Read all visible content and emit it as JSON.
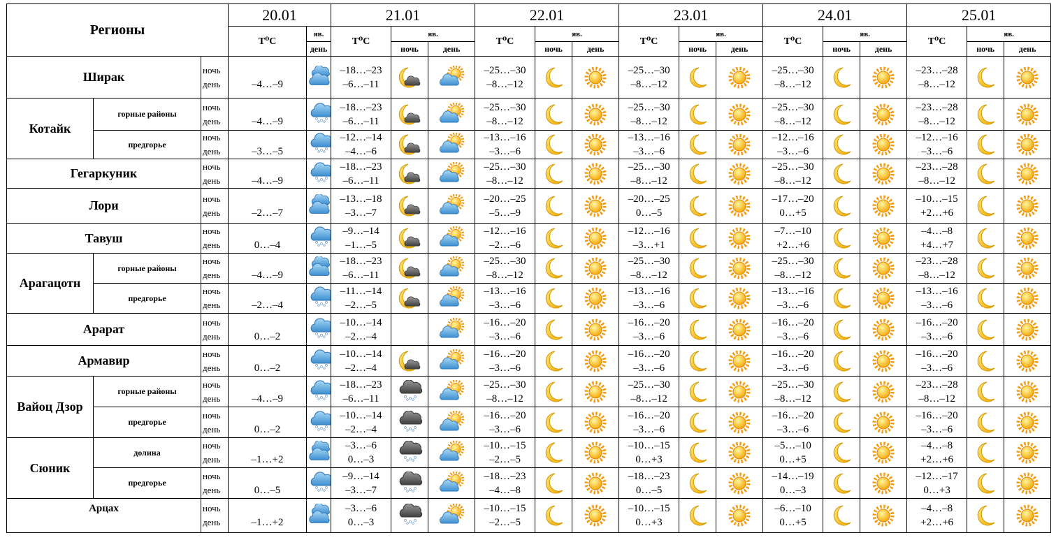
{
  "header": {
    "title": "Регионы",
    "dates": [
      "20.01",
      "21.01",
      "22.01",
      "23.01",
      "24.01",
      "25.01"
    ],
    "temp": "T⁰C",
    "phenomena": "яв.",
    "night": "ночь",
    "day": "день"
  },
  "regions": [
    {
      "name": "Ширак",
      "rows": [
        {
          "t0": "–4…–9",
          "t": [
            [
              "–18…–23",
              "–6…–11"
            ],
            [
              "–25…–30",
              "–8…–12"
            ],
            [
              "–25…–30",
              "–8…–12"
            ],
            [
              "–25…–30",
              "–8…–12"
            ],
            [
              "–23…–28",
              "–8…–12"
            ]
          ]
        }
      ]
    },
    {
      "name": "Котайк",
      "rows": [
        {
          "sub": "горные районы",
          "t0": "–4…–9",
          "t": [
            [
              "–18…–23",
              "–6…–11"
            ],
            [
              "–25…–30",
              "–8…–12"
            ],
            [
              "–25…–30",
              "–8…–12"
            ],
            [
              "–25…–30",
              "–8…–12"
            ],
            [
              "–23…–28",
              "–8…–12"
            ]
          ]
        },
        {
          "sub": "предгорье",
          "t0": "–3…–5",
          "t": [
            [
              "–12…–14",
              "–4…–6"
            ],
            [
              "–13…–16",
              "–3…–6"
            ],
            [
              "–13…–16",
              "–3…–6"
            ],
            [
              "–12…–16",
              "–3…–6"
            ],
            [
              "–12…–16",
              "–3…–6"
            ]
          ]
        }
      ]
    },
    {
      "name": "Гегаркуник",
      "rows": [
        {
          "t0": "–4…–9",
          "t": [
            [
              "–18…–23",
              "–6…–11"
            ],
            [
              "–25…–30",
              "–8…–12"
            ],
            [
              "–25…–30",
              "–8…–12"
            ],
            [
              "–25…–30",
              "–8…–12"
            ],
            [
              "–23…–28",
              "–8…–12"
            ]
          ]
        }
      ]
    },
    {
      "name": "Лори",
      "rows": [
        {
          "t0": "–2…–7",
          "t": [
            [
              "–13…–18",
              "–3…–7"
            ],
            [
              "–20…–25",
              "–5…–9"
            ],
            [
              "–20…–25",
              "0…–5"
            ],
            [
              "–17…–20",
              "0…+5"
            ],
            [
              "–10…–15",
              "+2…+6"
            ]
          ]
        }
      ]
    },
    {
      "name": "Тавуш",
      "rows": [
        {
          "t0": "0…–4",
          "t": [
            [
              "–9…–14",
              "–1…–5"
            ],
            [
              "–12…–16",
              "–2…–6"
            ],
            [
              "–12…–16",
              "–3…+1"
            ],
            [
              "–7…–10",
              "+2…+6"
            ],
            [
              "–4…–8",
              "+4…+7"
            ]
          ]
        }
      ]
    },
    {
      "name": "Арагацотн",
      "rows": [
        {
          "sub": "горные районы",
          "t0": "–4…–9",
          "t": [
            [
              "–18…–23",
              "–6…–11"
            ],
            [
              "–25…–30",
              "–8…–12"
            ],
            [
              "–25…–30",
              "–8…–12"
            ],
            [
              "–25…–30",
              "–8…–12"
            ],
            [
              "–23…–28",
              "–8…–12"
            ]
          ]
        },
        {
          "sub": "предгорье",
          "t0": "–2…–4",
          "t": [
            [
              "–11…–14",
              "–2…–5"
            ],
            [
              "–13…–16",
              "–3…–6"
            ],
            [
              "–13…–16",
              "–3…–6"
            ],
            [
              "–13…–16",
              "–3…–6"
            ],
            [
              "–13…–16",
              "–3…–6"
            ]
          ]
        }
      ]
    },
    {
      "name": "Арарат",
      "rows": [
        {
          "t0": "0…–2",
          "t": [
            [
              "–10…–14",
              "–2…–4"
            ],
            [
              "–16…–20",
              "–3…–6"
            ],
            [
              "–16…–20",
              "–3…–6"
            ],
            [
              "–16…–20",
              "–3…–6"
            ],
            [
              "–16…–20",
              "–3…–6"
            ]
          ]
        }
      ]
    },
    {
      "name": "Армавир",
      "rows": [
        {
          "t0": "0…–2",
          "t": [
            [
              "–10…–14",
              "–2…–4"
            ],
            [
              "–16…–20",
              "–3…–6"
            ],
            [
              "–16…–20",
              "–3…–6"
            ],
            [
              "–16…–20",
              "–3…–6"
            ],
            [
              "–16…–20",
              "–3…–6"
            ]
          ]
        }
      ]
    },
    {
      "name": "Вайоц Дзор",
      "rows": [
        {
          "sub": "горные районы",
          "t0": "–4…–9",
          "t": [
            [
              "–18…–23",
              "–6…–11"
            ],
            [
              "–25…–30",
              "–8…–12"
            ],
            [
              "–25…–30",
              "–8…–12"
            ],
            [
              "–25…–30",
              "–8…–12"
            ],
            [
              "–23…–28",
              "–8…–12"
            ]
          ]
        },
        {
          "sub": "предгорье",
          "t0": "0…–2",
          "t": [
            [
              "–10…–14",
              "–2…–4"
            ],
            [
              "–16…–20",
              "–3…–6"
            ],
            [
              "–16…–20",
              "–3…–6"
            ],
            [
              "–16…–20",
              "–3…–6"
            ],
            [
              "–16…–20",
              "–3…–6"
            ]
          ]
        }
      ]
    },
    {
      "name": "Сюник",
      "rows": [
        {
          "sub": "долина",
          "t0": "–1…+2",
          "t": [
            [
              "–3…–6",
              "0…–3"
            ],
            [
              "–10…–15",
              "–2…–5"
            ],
            [
              "–10…–15",
              "0…+3"
            ],
            [
              "–5…–10",
              "0…+5"
            ],
            [
              "–4…–8",
              "+2…+6"
            ]
          ]
        },
        {
          "sub": "предгорье",
          "t0": "0…–5",
          "t": [
            [
              "–9…–14",
              "–3…–7"
            ],
            [
              "–18…–23",
              "–4…–8"
            ],
            [
              "–18…–23",
              "0…–5"
            ],
            [
              "–14…–19",
              "0…–3"
            ],
            [
              "–12…–17",
              "0…+3"
            ]
          ]
        }
      ]
    },
    {
      "name": "Арцах",
      "rows": [
        {
          "t0": "–1…+2",
          "t": [
            [
              "–3…–6",
              "0…–3"
            ],
            [
              "–10…–15",
              "–2…–5"
            ],
            [
              "–10…–15",
              "0…+3"
            ],
            [
              "–6…–10",
              "0…+5"
            ],
            [
              "–4…–8",
              "+2…+6"
            ]
          ]
        }
      ]
    }
  ]
}
